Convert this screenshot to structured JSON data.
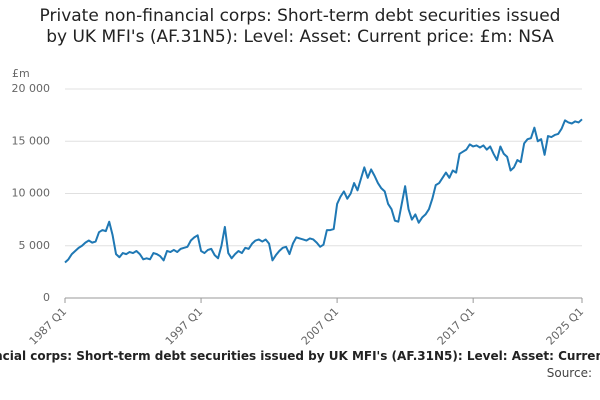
{
  "chart_data": {
    "type": "line",
    "title": "Private non-financial corps: Short-term debt securities issued by UK MFI's (AF.31N5): Level: Asset: Current price: £m: NSA",
    "y_unit": "£m",
    "source": "Source:",
    "categories": [
      "1987 Q1",
      null,
      null,
      null,
      null,
      null,
      null,
      null,
      null,
      null,
      null,
      null,
      null,
      null,
      null,
      null,
      null,
      null,
      null,
      null,
      null,
      null,
      null,
      null,
      null,
      null,
      null,
      null,
      null,
      null,
      null,
      null,
      null,
      null,
      null,
      null,
      null,
      null,
      null,
      null,
      "1997 Q1",
      null,
      null,
      null,
      null,
      null,
      null,
      null,
      null,
      null,
      null,
      null,
      null,
      null,
      null,
      null,
      null,
      null,
      null,
      null,
      null,
      null,
      null,
      null,
      null,
      null,
      null,
      null,
      null,
      null,
      null,
      null,
      null,
      null,
      null,
      null,
      null,
      null,
      null,
      null,
      "2007 Q1",
      null,
      null,
      null,
      null,
      null,
      null,
      null,
      null,
      null,
      null,
      null,
      null,
      null,
      null,
      null,
      null,
      null,
      null,
      null,
      null,
      null,
      null,
      null,
      null,
      null,
      null,
      null,
      null,
      null,
      null,
      null,
      null,
      null,
      null,
      null,
      null,
      null,
      null,
      null,
      "2017 Q1",
      null,
      null,
      null,
      null,
      null,
      null,
      null,
      null,
      null,
      null,
      null,
      null,
      null,
      null,
      null,
      null,
      null,
      null,
      null,
      null,
      null,
      null,
      null,
      null,
      null,
      null,
      null,
      null,
      null,
      null,
      null,
      "2025 Q1"
    ],
    "series": [
      {
        "color": "#1f78b4",
        "values": [
          3400,
          3700,
          4200,
          4500,
          4800,
          5000,
          5300,
          5500,
          5300,
          5400,
          6300,
          6500,
          6400,
          7300,
          6000,
          4200,
          3900,
          4300,
          4200,
          4400,
          4300,
          4500,
          4200,
          3700,
          3800,
          3700,
          4300,
          4200,
          4000,
          3600,
          4500,
          4400,
          4600,
          4400,
          4700,
          4800,
          4900,
          5500,
          5800,
          6000,
          4500,
          4300,
          4600,
          4700,
          4100,
          3800,
          5000,
          6800,
          4300,
          3800,
          4200,
          4500,
          4300,
          4800,
          4700,
          5200,
          5500,
          5600,
          5400,
          5600,
          5200,
          3600,
          4100,
          4500,
          4800,
          4900,
          4200,
          5200,
          5800,
          5700,
          5600,
          5500,
          5700,
          5600,
          5300,
          4900,
          5100,
          6500,
          6500,
          6600,
          9000,
          9700,
          10200,
          9500,
          10000,
          11000,
          10300,
          11400,
          12500,
          11500,
          12300,
          11700,
          11000,
          10500,
          10200,
          9000,
          8500,
          7400,
          7300,
          9000,
          10700,
          8500,
          7500,
          8000,
          7200,
          7700,
          8000,
          8500,
          9500,
          10800,
          11000,
          11500,
          12000,
          11500,
          12200,
          12000,
          13800,
          14000,
          14200,
          14700,
          14500,
          14600,
          14400,
          14600,
          14200,
          14500,
          13800,
          13200,
          14500,
          13800,
          13500,
          12200,
          12500,
          13200,
          13000,
          14800,
          15200,
          15300,
          16300,
          15000,
          15200,
          13700,
          15500,
          15400,
          15600,
          15700,
          16200,
          17000,
          16800,
          16700,
          16900,
          16800,
          17100
        ]
      }
    ],
    "ylim": [
      0,
      20000
    ],
    "yticks": [
      0,
      {
        "value": 5000,
        "label": "5 000"
      },
      {
        "value": 10000,
        "label": "10 000"
      },
      {
        "value": 15000,
        "label": "15 000"
      },
      {
        "value": 20000,
        "label": "20 000"
      }
    ],
    "grid": true
  }
}
